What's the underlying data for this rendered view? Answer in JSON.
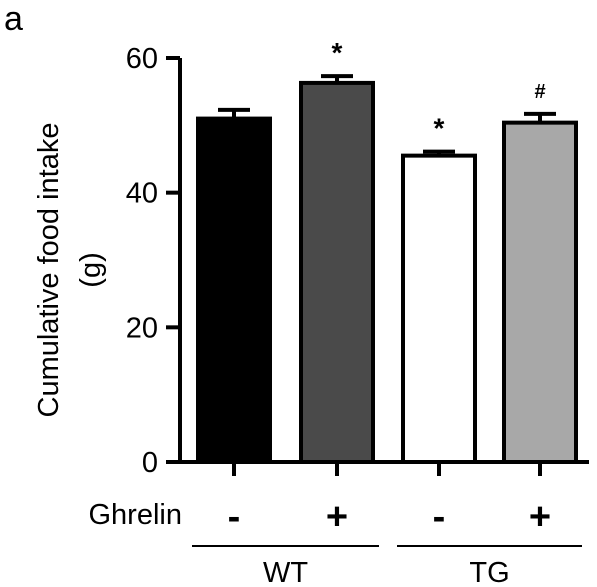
{
  "panel_label": "a",
  "chart_data": {
    "type": "bar",
    "ylabel_line1": "Cumulative food intake",
    "ylabel_line2": "(g)",
    "ylim": [
      0,
      60
    ],
    "yticks": [
      "0",
      "20",
      "40",
      "60"
    ],
    "treatment_label": "Ghrelin",
    "groups": [
      {
        "name": "WT",
        "bars": [
          0,
          1
        ]
      },
      {
        "name": "TG",
        "bars": [
          2,
          3
        ]
      }
    ],
    "bars": [
      {
        "treatment": "-",
        "value": 51.0,
        "error": 1.3,
        "fill": "#000000",
        "annotation": ""
      },
      {
        "treatment": "+",
        "value": 56.3,
        "error": 1.0,
        "fill": "#4a4a4a",
        "annotation": "*"
      },
      {
        "treatment": "-",
        "value": 45.5,
        "error": 0.6,
        "fill": "#ffffff",
        "annotation": "*"
      },
      {
        "treatment": "+",
        "value": 50.4,
        "error": 1.3,
        "fill": "#a8a8a8",
        "annotation": "#"
      }
    ]
  }
}
